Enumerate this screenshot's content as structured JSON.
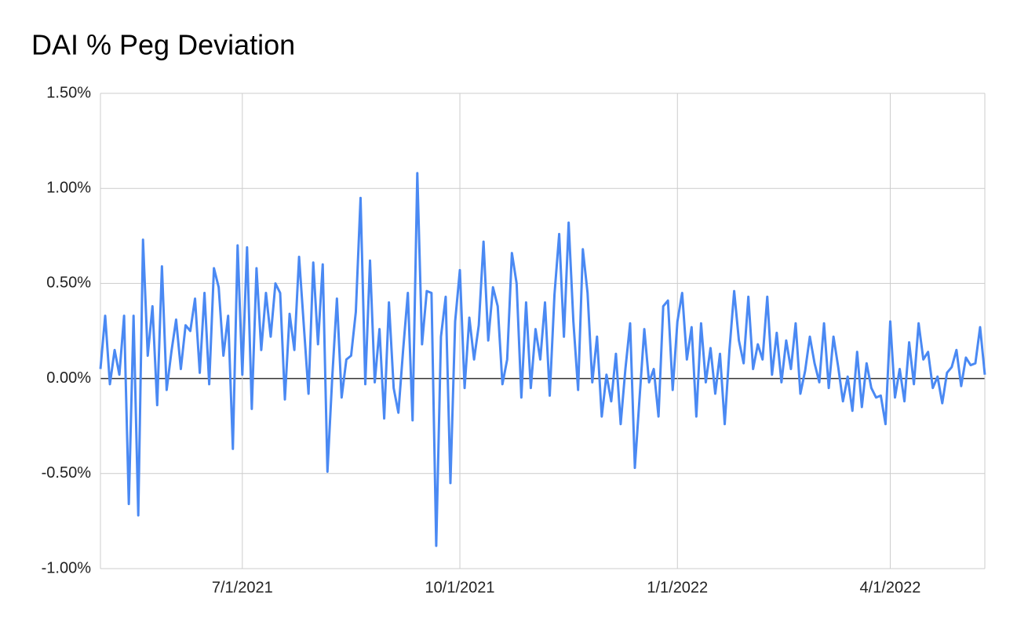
{
  "chart_data": {
    "type": "line",
    "title": "DAI % Peg Deviation",
    "x": [
      "5/2/2021",
      "5/4/2021",
      "5/6/2021",
      "5/8/2021",
      "5/10/2021",
      "5/12/2021",
      "5/14/2021",
      "5/16/2021",
      "5/18/2021",
      "5/20/2021",
      "5/22/2021",
      "5/24/2021",
      "5/26/2021",
      "5/28/2021",
      "5/30/2021",
      "6/1/2021",
      "6/3/2021",
      "6/5/2021",
      "6/7/2021",
      "6/9/2021",
      "6/11/2021",
      "6/13/2021",
      "6/15/2021",
      "6/17/2021",
      "6/19/2021",
      "6/21/2021",
      "6/23/2021",
      "6/25/2021",
      "6/27/2021",
      "6/29/2021",
      "7/1/2021",
      "7/3/2021",
      "7/5/2021",
      "7/7/2021",
      "7/9/2021",
      "7/11/2021",
      "7/13/2021",
      "7/15/2021",
      "7/17/2021",
      "7/19/2021",
      "7/21/2021",
      "7/23/2021",
      "7/25/2021",
      "7/27/2021",
      "7/29/2021",
      "7/31/2021",
      "8/2/2021",
      "8/4/2021",
      "8/6/2021",
      "8/8/2021",
      "8/10/2021",
      "8/12/2021",
      "8/14/2021",
      "8/16/2021",
      "8/18/2021",
      "8/20/2021",
      "8/22/2021",
      "8/24/2021",
      "8/26/2021",
      "8/28/2021",
      "8/30/2021",
      "9/1/2021",
      "9/3/2021",
      "9/5/2021",
      "9/7/2021",
      "9/9/2021",
      "9/11/2021",
      "9/13/2021",
      "9/15/2021",
      "9/17/2021",
      "9/19/2021",
      "9/21/2021",
      "9/23/2021",
      "9/25/2021",
      "9/27/2021",
      "9/29/2021",
      "10/1/2021",
      "10/3/2021",
      "10/5/2021",
      "10/7/2021",
      "10/9/2021",
      "10/11/2021",
      "10/13/2021",
      "10/15/2021",
      "10/17/2021",
      "10/19/2021",
      "10/21/2021",
      "10/23/2021",
      "10/25/2021",
      "10/27/2021",
      "10/29/2021",
      "10/31/2021",
      "11/2/2021",
      "11/4/2021",
      "11/6/2021",
      "11/8/2021",
      "11/10/2021",
      "11/12/2021",
      "11/14/2021",
      "11/16/2021",
      "11/18/2021",
      "11/20/2021",
      "11/22/2021",
      "11/24/2021",
      "11/26/2021",
      "11/28/2021",
      "11/30/2021",
      "12/2/2021",
      "12/4/2021",
      "12/6/2021",
      "12/8/2021",
      "12/10/2021",
      "12/12/2021",
      "12/14/2021",
      "12/16/2021",
      "12/18/2021",
      "12/20/2021",
      "12/22/2021",
      "12/24/2021",
      "12/26/2021",
      "12/28/2021",
      "12/30/2021",
      "1/1/2022",
      "1/3/2022",
      "1/5/2022",
      "1/7/2022",
      "1/9/2022",
      "1/11/2022",
      "1/13/2022",
      "1/15/2022",
      "1/17/2022",
      "1/19/2022",
      "1/21/2022",
      "1/23/2022",
      "1/25/2022",
      "1/27/2022",
      "1/29/2022",
      "1/31/2022",
      "2/2/2022",
      "2/4/2022",
      "2/6/2022",
      "2/8/2022",
      "2/10/2022",
      "2/12/2022",
      "2/14/2022",
      "2/16/2022",
      "2/18/2022",
      "2/20/2022",
      "2/22/2022",
      "2/24/2022",
      "2/26/2022",
      "2/28/2022",
      "3/2/2022",
      "3/4/2022",
      "3/6/2022",
      "3/8/2022",
      "3/10/2022",
      "3/12/2022",
      "3/14/2022",
      "3/16/2022",
      "3/18/2022",
      "3/20/2022",
      "3/22/2022",
      "3/24/2022",
      "3/26/2022",
      "3/28/2022",
      "3/30/2022",
      "4/1/2022",
      "4/3/2022",
      "4/5/2022",
      "4/7/2022",
      "4/9/2022",
      "4/11/2022",
      "4/13/2022",
      "4/15/2022",
      "4/17/2022",
      "4/19/2022",
      "4/21/2022",
      "4/23/2022",
      "4/25/2022",
      "4/27/2022",
      "4/29/2022",
      "5/1/2022",
      "5/3/2022",
      "5/5/2022",
      "5/7/2022",
      "5/9/2022",
      "5/11/2022"
    ],
    "series": [
      {
        "color": "#4a89f3",
        "values": [
          0.05,
          0.33,
          -0.03,
          0.15,
          0.02,
          0.33,
          -0.66,
          0.33,
          -0.72,
          0.73,
          0.12,
          0.38,
          -0.14,
          0.59,
          -0.06,
          0.14,
          0.31,
          0.05,
          0.28,
          0.25,
          0.42,
          0.03,
          0.45,
          -0.03,
          0.58,
          0.48,
          0.12,
          0.33,
          -0.37,
          0.7,
          0.02,
          0.69,
          -0.16,
          0.58,
          0.15,
          0.45,
          0.22,
          0.5,
          0.45,
          -0.11,
          0.34,
          0.15,
          0.64,
          0.28,
          -0.08,
          0.61,
          0.18,
          0.6,
          -0.49,
          0.0,
          0.42,
          -0.1,
          0.1,
          0.12,
          0.35,
          0.95,
          -0.03,
          0.62,
          -0.02,
          0.26,
          -0.21,
          0.4,
          -0.05,
          -0.18,
          0.15,
          0.45,
          -0.22,
          1.08,
          0.18,
          0.46,
          0.45,
          -0.88,
          0.22,
          0.43,
          -0.55,
          0.3,
          0.57,
          -0.05,
          0.32,
          0.1,
          0.28,
          0.72,
          0.2,
          0.48,
          0.38,
          -0.03,
          0.1,
          0.66,
          0.5,
          -0.1,
          0.4,
          -0.05,
          0.26,
          0.1,
          0.4,
          -0.09,
          0.44,
          0.76,
          0.22,
          0.82,
          0.3,
          -0.06,
          0.68,
          0.45,
          -0.02,
          0.22,
          -0.2,
          0.02,
          -0.12,
          0.13,
          -0.24,
          0.05,
          0.29,
          -0.47,
          -0.1,
          0.26,
          -0.02,
          0.05,
          -0.2,
          0.38,
          0.41,
          -0.06,
          0.3,
          0.45,
          0.1,
          0.27,
          -0.2,
          0.29,
          -0.02,
          0.16,
          -0.08,
          0.13,
          -0.24,
          0.15,
          0.46,
          0.2,
          0.08,
          0.43,
          0.05,
          0.18,
          0.1,
          0.43,
          0.02,
          0.24,
          -0.02,
          0.2,
          0.05,
          0.29,
          -0.08,
          0.04,
          0.22,
          0.08,
          -0.02,
          0.29,
          -0.05,
          0.22,
          0.06,
          -0.12,
          0.01,
          -0.17,
          0.14,
          -0.15,
          0.08,
          -0.05,
          -0.1,
          -0.09,
          -0.24,
          0.3,
          -0.1,
          0.05,
          -0.12,
          0.19,
          -0.03,
          0.29,
          0.1,
          0.14,
          -0.05,
          0.01,
          -0.13,
          0.03,
          0.06,
          0.15,
          -0.04,
          0.11,
          0.07,
          0.08,
          0.27,
          0.02
        ]
      }
    ],
    "xlim": [
      "5/2/2021",
      "5/11/2022"
    ],
    "xticks": [
      "7/1/2021",
      "10/1/2021",
      "1/1/2022",
      "4/1/2022"
    ],
    "ylim": [
      -1,
      1.5
    ],
    "yticks": [
      {
        "value": -1,
        "label": "-1.00%"
      },
      {
        "value": -0.5,
        "label": "-0.50%"
      },
      {
        "value": 0,
        "label": "0.00%"
      },
      {
        "value": 0.5,
        "label": "0.50%"
      },
      {
        "value": 1,
        "label": "1.00%"
      },
      {
        "value": 1.5,
        "label": "1.50%"
      }
    ],
    "grid": true
  }
}
